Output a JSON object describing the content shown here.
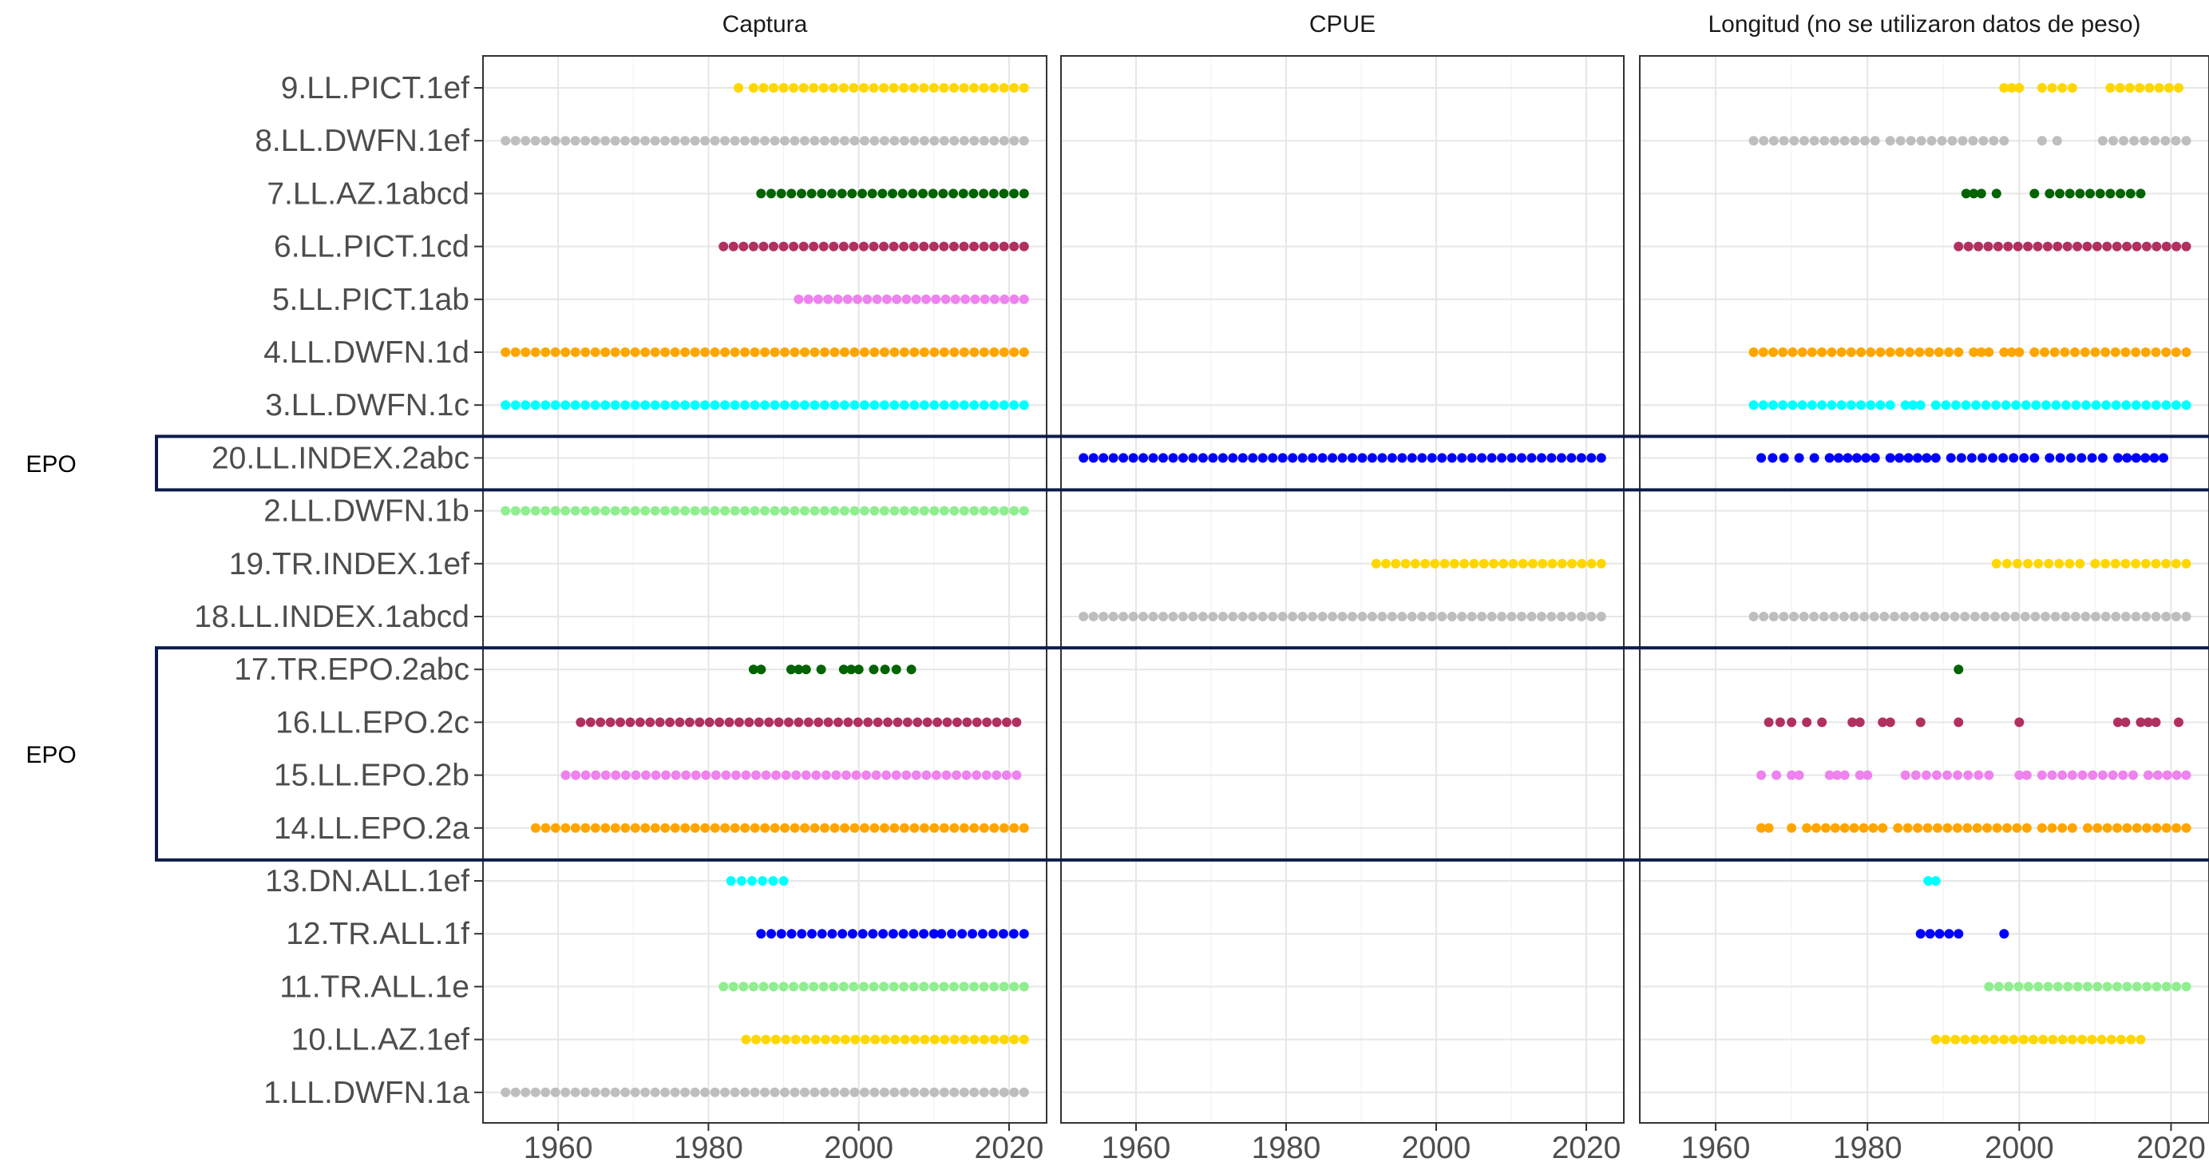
{
  "chart_data": {
    "type": "scatter",
    "panels": [
      {
        "title": "Captura",
        "key": "catch"
      },
      {
        "title": "CPUE",
        "key": "cpue"
      },
      {
        "title": "Longitud (no se utilizaron datos de peso)",
        "key": "length"
      }
    ],
    "x_ticks": [
      "1960",
      "1980",
      "2000",
      "2020"
    ],
    "xlim": [
      1950,
      2025
    ],
    "grid": true,
    "rows": [
      "9.LL.PICT.1ef",
      "8.LL.DWFN.1ef",
      "7.LL.AZ.1abcd",
      "6.LL.PICT.1cd",
      "5.LL.PICT.1ab",
      "4.LL.DWFN.1d",
      "3.LL.DWFN.1c",
      "20.LL.INDEX.2abc",
      "2.LL.DWFN.1b",
      "19.TR.INDEX.1ef",
      "18.LL.INDEX.1abcd",
      "17.TR.EPO.2abc",
      "16.LL.EPO.2c",
      "15.LL.EPO.2b",
      "14.LL.EPO.2a",
      "13.DN.ALL.1ef",
      "12.TR.ALL.1f",
      "11.TR.ALL.1e",
      "10.LL.AZ.1ef",
      "1.LL.DWFN.1a"
    ],
    "group_boxes": [
      {
        "label": "EPO",
        "rows": [
          "20.LL.INDEX.2abc"
        ]
      },
      {
        "label": "EPO",
        "rows": [
          "17.TR.EPO.2abc",
          "14.LL.EPO.2a"
        ]
      }
    ],
    "series": [
      {
        "row": "9.LL.PICT.1ef",
        "color": "#FFD700",
        "catch": [
          [
            1984,
            1984
          ],
          [
            1986,
            2022
          ]
        ],
        "cpue": [],
        "length": [
          [
            1998,
            2000
          ],
          [
            2003,
            2007
          ],
          [
            2012,
            2021
          ]
        ]
      },
      {
        "row": "8.LL.DWFN.1ef",
        "color": "#BEBEBE",
        "catch": [
          [
            1953,
            2022
          ]
        ],
        "cpue": [],
        "length": [
          [
            1965,
            1981
          ],
          [
            1983,
            1998
          ],
          [
            2003,
            2003
          ],
          [
            2005,
            2005
          ],
          [
            2011,
            2022
          ]
        ]
      },
      {
        "row": "7.LL.AZ.1abcd",
        "color": "#006400",
        "catch": [
          [
            1987,
            2022
          ]
        ],
        "cpue": [],
        "length": [
          [
            1993,
            1995
          ],
          [
            1997,
            1997
          ],
          [
            2002,
            2002
          ],
          [
            2004,
            2016
          ]
        ]
      },
      {
        "row": "6.LL.PICT.1cd",
        "color": "#B03060",
        "catch": [
          [
            1982,
            2022
          ]
        ],
        "cpue": [],
        "length": [
          [
            1992,
            2022
          ]
        ]
      },
      {
        "row": "5.LL.PICT.1ab",
        "color": "#EE82EE",
        "catch": [
          [
            1992,
            2022
          ]
        ],
        "cpue": [],
        "length": []
      },
      {
        "row": "4.LL.DWFN.1d",
        "color": "#FFA500",
        "catch": [
          [
            1953,
            2022
          ]
        ],
        "cpue": [],
        "length": [
          [
            1965,
            1992
          ],
          [
            1994,
            1996
          ],
          [
            1998,
            2000
          ],
          [
            2002,
            2022
          ]
        ]
      },
      {
        "row": "3.LL.DWFN.1c",
        "color": "#00FFFF",
        "catch": [
          [
            1953,
            2022
          ]
        ],
        "cpue": [],
        "length": [
          [
            1965,
            1983
          ],
          [
            1985,
            1987
          ],
          [
            1989,
            2022
          ]
        ]
      },
      {
        "row": "20.LL.INDEX.2abc",
        "color": "#0000FF",
        "catch": [],
        "cpue": [
          [
            1953,
            2022
          ]
        ],
        "length": [
          [
            1966,
            1969
          ],
          [
            1971,
            1971
          ],
          [
            1973,
            1973
          ],
          [
            1975,
            1981
          ],
          [
            1983,
            1989
          ],
          [
            1991,
            2002
          ],
          [
            2004,
            2011
          ],
          [
            2013,
            2019
          ]
        ]
      },
      {
        "row": "2.LL.DWFN.1b",
        "color": "#90EE90",
        "catch": [
          [
            1953,
            2022
          ]
        ],
        "cpue": [],
        "length": []
      },
      {
        "row": "19.TR.INDEX.1ef",
        "color": "#FFD700",
        "catch": [],
        "cpue": [
          [
            1992,
            2022
          ]
        ],
        "length": [
          [
            1997,
            2008
          ],
          [
            2010,
            2022
          ]
        ]
      },
      {
        "row": "18.LL.INDEX.1abcd",
        "color": "#BEBEBE",
        "catch": [],
        "cpue": [
          [
            1953,
            2022
          ]
        ],
        "length": [
          [
            1965,
            2022
          ]
        ]
      },
      {
        "row": "17.TR.EPO.2abc",
        "color": "#006400",
        "catch": [
          [
            1986,
            1987
          ],
          [
            1991,
            1993
          ],
          [
            1995,
            1995
          ],
          [
            1998,
            2000
          ],
          [
            2002,
            2005
          ],
          [
            2007,
            2007
          ]
        ],
        "cpue": [],
        "length": [
          [
            1992,
            1992
          ]
        ]
      },
      {
        "row": "16.LL.EPO.2c",
        "color": "#B03060",
        "catch": [
          [
            1963,
            2021
          ]
        ],
        "cpue": [],
        "length": [
          [
            1967,
            1970
          ],
          [
            1972,
            1972
          ],
          [
            1974,
            1974
          ],
          [
            1978,
            1979
          ],
          [
            1982,
            1983
          ],
          [
            1987,
            1987
          ],
          [
            1992,
            1992
          ],
          [
            2000,
            2000
          ],
          [
            2013,
            2014
          ],
          [
            2016,
            2018
          ],
          [
            2021,
            2021
          ]
        ]
      },
      {
        "row": "15.LL.EPO.2b",
        "color": "#EE82EE",
        "catch": [
          [
            1961,
            2021
          ]
        ],
        "cpue": [],
        "length": [
          [
            1966,
            1966
          ],
          [
            1968,
            1968
          ],
          [
            1970,
            1971
          ],
          [
            1975,
            1977
          ],
          [
            1979,
            1980
          ],
          [
            1985,
            1996
          ],
          [
            2000,
            2001
          ],
          [
            2003,
            2015
          ],
          [
            2017,
            2022
          ]
        ]
      },
      {
        "row": "14.LL.EPO.2a",
        "color": "#FFA500",
        "catch": [
          [
            1957,
            2022
          ]
        ],
        "cpue": [],
        "length": [
          [
            1966,
            1967
          ],
          [
            1970,
            1970
          ],
          [
            1972,
            1982
          ],
          [
            1984,
            2001
          ],
          [
            2003,
            2007
          ],
          [
            2009,
            2022
          ]
        ]
      },
      {
        "row": "13.DN.ALL.1ef",
        "color": "#00FFFF",
        "catch": [
          [
            1983,
            1990
          ]
        ],
        "cpue": [],
        "length": [
          [
            1988,
            1989
          ]
        ]
      },
      {
        "row": "12.TR.ALL.1f",
        "color": "#0000FF",
        "catch": [
          [
            1987,
            2010
          ],
          [
            2011,
            2022
          ]
        ],
        "cpue": [],
        "length": [
          [
            1987,
            1992
          ],
          [
            1998,
            1998
          ]
        ]
      },
      {
        "row": "11.TR.ALL.1e",
        "color": "#90EE90",
        "catch": [
          [
            1982,
            2022
          ]
        ],
        "cpue": [],
        "length": [
          [
            1996,
            2022
          ]
        ]
      },
      {
        "row": "10.LL.AZ.1ef",
        "color": "#FFD700",
        "catch": [
          [
            1985,
            2022
          ]
        ],
        "cpue": [],
        "length": [
          [
            1989,
            2016
          ]
        ]
      },
      {
        "row": "1.LL.DWFN.1a",
        "color": "#BEBEBE",
        "catch": [
          [
            1953,
            2022
          ]
        ],
        "cpue": [],
        "length": []
      }
    ]
  }
}
